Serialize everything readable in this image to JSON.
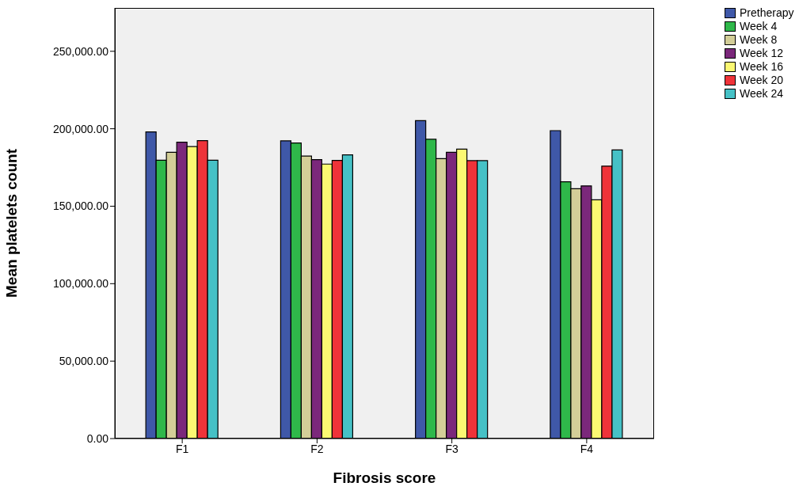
{
  "chart_data": {
    "type": "bar",
    "xlabel": "Fibrosis score",
    "ylabel": "Mean platelets count",
    "categories": [
      "F1",
      "F2",
      "F3",
      "F4"
    ],
    "series": [
      {
        "name": "Pretherapy",
        "color": "#3f58a8",
        "values": [
          198000,
          192200,
          205200,
          198800
        ]
      },
      {
        "name": "Week 4",
        "color": "#2fb84a",
        "values": [
          179700,
          190800,
          193200,
          165800
        ]
      },
      {
        "name": "Week 8",
        "color": "#d3ce98",
        "values": [
          184800,
          182400,
          180700,
          161300
        ]
      },
      {
        "name": "Week 12",
        "color": "#7b287b",
        "values": [
          191300,
          180100,
          184800,
          163100
        ]
      },
      {
        "name": "Week 16",
        "color": "#fbf872",
        "values": [
          188500,
          177200,
          186800,
          154100
        ]
      },
      {
        "name": "Week 20",
        "color": "#ef3339",
        "values": [
          192300,
          179600,
          179400,
          175900
        ]
      },
      {
        "name": "Week 24",
        "color": "#46c1c6",
        "values": [
          179700,
          183100,
          179400,
          186300
        ]
      }
    ],
    "ylim": [
      0,
      278000
    ],
    "yticks": [
      {
        "value": 0,
        "label": "0.00"
      },
      {
        "value": 50000,
        "label": "50,000.00"
      },
      {
        "value": 100000,
        "label": "100,000.00"
      },
      {
        "value": 150000,
        "label": "150,000.00"
      },
      {
        "value": 200000,
        "label": "200,000.00"
      },
      {
        "value": 250000,
        "label": "250,000.00"
      }
    ],
    "legend": "top right",
    "grid": false
  }
}
